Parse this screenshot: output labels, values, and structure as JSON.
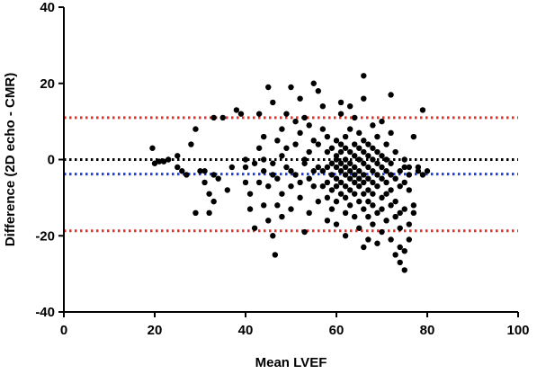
{
  "chart_data": {
    "type": "scatter",
    "title": "",
    "xlabel": "Mean LVEF",
    "ylabel": "Difference (2D echo - CMR)",
    "xlim": [
      0,
      100
    ],
    "ylim": [
      -40,
      40
    ],
    "xticks": [
      0,
      20,
      40,
      60,
      80,
      100
    ],
    "yticks": [
      -40,
      -20,
      0,
      20,
      40
    ],
    "grid": false,
    "reference_lines": [
      {
        "y": 11,
        "color": "#e8302a",
        "style": "dotted"
      },
      {
        "y": 0,
        "color": "#000000",
        "style": "dotted"
      },
      {
        "y": -3.8,
        "color": "#1f3fd1",
        "style": "dotted"
      },
      {
        "y": -18.7,
        "color": "#e8302a",
        "style": "dotted"
      }
    ],
    "marker_color": "#000000",
    "points": [
      [
        19.5,
        3
      ],
      [
        20,
        -1
      ],
      [
        21,
        -0.5
      ],
      [
        22,
        -0.5
      ],
      [
        23,
        0
      ],
      [
        25,
        1
      ],
      [
        25,
        -2
      ],
      [
        26,
        -3
      ],
      [
        27,
        -4
      ],
      [
        28,
        4
      ],
      [
        29,
        -14
      ],
      [
        29,
        8
      ],
      [
        30,
        -3
      ],
      [
        31,
        -3
      ],
      [
        31,
        -6
      ],
      [
        32,
        -9
      ],
      [
        32,
        -14
      ],
      [
        33,
        11
      ],
      [
        33,
        -4
      ],
      [
        33,
        -11
      ],
      [
        34,
        -5
      ],
      [
        35,
        11
      ],
      [
        36,
        -8
      ],
      [
        37,
        -2
      ],
      [
        38,
        13
      ],
      [
        39,
        12
      ],
      [
        40,
        0
      ],
      [
        40,
        -2
      ],
      [
        40,
        -6
      ],
      [
        41,
        -9
      ],
      [
        41,
        -13
      ],
      [
        42,
        -18
      ],
      [
        42,
        -1
      ],
      [
        43,
        3
      ],
      [
        43,
        -6
      ],
      [
        43,
        12
      ],
      [
        44,
        6
      ],
      [
        44,
        0
      ],
      [
        44,
        -3
      ],
      [
        44,
        -12
      ],
      [
        45,
        -7
      ],
      [
        45,
        19
      ],
      [
        45,
        -16
      ],
      [
        46,
        -4
      ],
      [
        46,
        15
      ],
      [
        46,
        -1
      ],
      [
        46,
        -20
      ],
      [
        46.5,
        -25
      ],
      [
        47,
        5
      ],
      [
        47,
        -5
      ],
      [
        47,
        -12
      ],
      [
        48,
        1
      ],
      [
        48,
        -9
      ],
      [
        48,
        8
      ],
      [
        48,
        -15
      ],
      [
        49,
        -2
      ],
      [
        49,
        3
      ],
      [
        49,
        12
      ],
      [
        50,
        19
      ],
      [
        50,
        -7
      ],
      [
        50,
        -3
      ],
      [
        50,
        -13
      ],
      [
        51,
        10
      ],
      [
        51,
        -4
      ],
      [
        51,
        4
      ],
      [
        52,
        16
      ],
      [
        52,
        -6
      ],
      [
        52,
        7
      ],
      [
        52,
        -10
      ],
      [
        53,
        0
      ],
      [
        53,
        -1
      ],
      [
        53,
        11
      ],
      [
        53,
        -19
      ],
      [
        54,
        2
      ],
      [
        54,
        -5
      ],
      [
        54,
        9
      ],
      [
        54,
        -14
      ],
      [
        55,
        20
      ],
      [
        55,
        -3
      ],
      [
        55,
        5
      ],
      [
        55,
        -7
      ],
      [
        56,
        18
      ],
      [
        56,
        -2
      ],
      [
        56,
        4
      ],
      [
        56,
        -11
      ],
      [
        57,
        14
      ],
      [
        57,
        -3
      ],
      [
        57,
        -7
      ],
      [
        57,
        8
      ],
      [
        58,
        -6
      ],
      [
        58,
        2
      ],
      [
        58,
        -2
      ],
      [
        58,
        -16
      ],
      [
        58,
        -10
      ],
      [
        58,
        6
      ],
      [
        59,
        -1
      ],
      [
        59,
        -4
      ],
      [
        59,
        3
      ],
      [
        59,
        -8
      ],
      [
        59,
        -13
      ],
      [
        60,
        -2
      ],
      [
        60,
        -5
      ],
      [
        60,
        0
      ],
      [
        60,
        1
      ],
      [
        60,
        -7
      ],
      [
        60,
        5
      ],
      [
        60,
        -11
      ],
      [
        60,
        -17
      ],
      [
        61,
        -3
      ],
      [
        61,
        -1
      ],
      [
        61,
        -6
      ],
      [
        61,
        2
      ],
      [
        61,
        -9
      ],
      [
        61,
        4
      ],
      [
        61,
        12
      ],
      [
        61,
        15
      ],
      [
        62,
        -4
      ],
      [
        62,
        -2
      ],
      [
        62,
        -7
      ],
      [
        62,
        0
      ],
      [
        62,
        3
      ],
      [
        62,
        -10
      ],
      [
        62,
        6
      ],
      [
        62,
        -14
      ],
      [
        62,
        -20
      ],
      [
        63,
        -5
      ],
      [
        63,
        -1
      ],
      [
        63,
        -3
      ],
      [
        63,
        -8
      ],
      [
        63,
        2
      ],
      [
        63,
        8
      ],
      [
        63,
        -12
      ],
      [
        63,
        14
      ],
      [
        64,
        -6
      ],
      [
        64,
        -2
      ],
      [
        64,
        -4
      ],
      [
        64,
        1
      ],
      [
        64,
        -9
      ],
      [
        64,
        4
      ],
      [
        64,
        -15
      ],
      [
        64,
        11
      ],
      [
        65,
        -3
      ],
      [
        65,
        -5
      ],
      [
        65,
        0
      ],
      [
        65,
        -7
      ],
      [
        65,
        3
      ],
      [
        65,
        -11
      ],
      [
        65,
        -18
      ],
      [
        65,
        7
      ],
      [
        66,
        22
      ],
      [
        66,
        -4
      ],
      [
        66,
        -1
      ],
      [
        66,
        -6
      ],
      [
        66,
        2
      ],
      [
        66,
        -9
      ],
      [
        66,
        5
      ],
      [
        66,
        -13
      ],
      [
        66,
        -23
      ],
      [
        66,
        16
      ],
      [
        67,
        -5
      ],
      [
        67,
        -2
      ],
      [
        67,
        -8
      ],
      [
        67,
        1
      ],
      [
        67,
        -11
      ],
      [
        67,
        4
      ],
      [
        67,
        -15
      ],
      [
        67,
        -21
      ],
      [
        68,
        -3
      ],
      [
        68,
        -6
      ],
      [
        68,
        0
      ],
      [
        68,
        -9
      ],
      [
        68,
        3
      ],
      [
        68,
        -12
      ],
      [
        68,
        -17
      ],
      [
        68,
        9
      ],
      [
        69,
        -4
      ],
      [
        69,
        -1
      ],
      [
        69,
        -7
      ],
      [
        69,
        2
      ],
      [
        69,
        -14
      ],
      [
        69,
        -22
      ],
      [
        69,
        6
      ],
      [
        70,
        -5
      ],
      [
        70,
        -2
      ],
      [
        70,
        -10
      ],
      [
        70,
        1
      ],
      [
        70,
        -13
      ],
      [
        70,
        -19
      ],
      [
        70,
        10
      ],
      [
        71,
        -6
      ],
      [
        71,
        -3
      ],
      [
        71,
        0
      ],
      [
        71,
        -9
      ],
      [
        71,
        -16
      ],
      [
        71,
        4
      ],
      [
        72,
        17
      ],
      [
        72,
        -4
      ],
      [
        72,
        -8
      ],
      [
        72,
        -1
      ],
      [
        72,
        -12
      ],
      [
        72,
        -21
      ],
      [
        72,
        7
      ],
      [
        73,
        -5
      ],
      [
        73,
        -11
      ],
      [
        73,
        -15
      ],
      [
        73,
        -25
      ],
      [
        73,
        2
      ],
      [
        74,
        -3
      ],
      [
        74,
        -7
      ],
      [
        74,
        -14
      ],
      [
        74,
        -18
      ],
      [
        74,
        -27
      ],
      [
        74,
        -23
      ],
      [
        75,
        -6
      ],
      [
        75,
        -2
      ],
      [
        75,
        -13
      ],
      [
        75,
        -29
      ],
      [
        75,
        -24
      ],
      [
        75,
        0
      ],
      [
        76,
        -8
      ],
      [
        76,
        -4
      ],
      [
        76,
        -17
      ],
      [
        76,
        -21
      ],
      [
        76,
        -2
      ],
      [
        77,
        -12
      ],
      [
        77,
        6
      ],
      [
        77,
        -14
      ],
      [
        78,
        -2
      ],
      [
        78,
        -3
      ],
      [
        79,
        -4
      ],
      [
        79,
        13
      ],
      [
        80,
        -3
      ]
    ]
  }
}
